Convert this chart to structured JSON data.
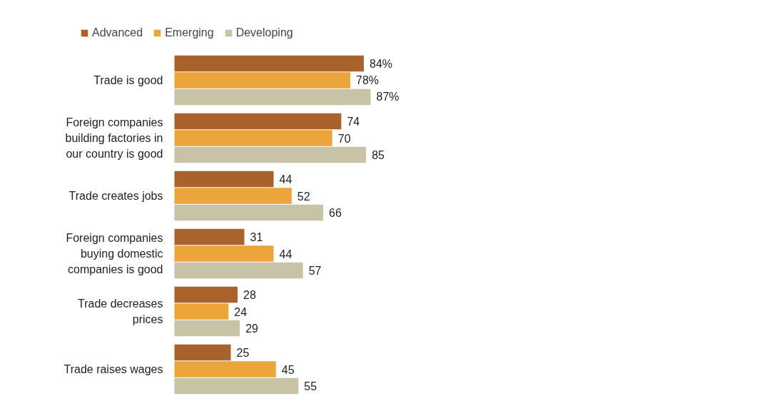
{
  "chart_data": {
    "type": "bar",
    "orientation": "horizontal",
    "categories": [
      "Trade is good",
      "Foreign companies building factories in our country is good",
      "Trade creates jobs",
      "Foreign companies buying domestic companies is good",
      "Trade decreases prices",
      "Trade raises wages"
    ],
    "series": [
      {
        "name": "Advanced",
        "color": "#a9622c",
        "values": [
          84,
          74,
          44,
          31,
          28,
          25
        ],
        "value_labels": [
          "84%",
          "74",
          "44",
          "31",
          "28",
          "25"
        ]
      },
      {
        "name": "Emerging",
        "color": "#eba53a",
        "values": [
          78,
          70,
          52,
          44,
          24,
          45
        ],
        "value_labels": [
          "78%",
          "70",
          "52",
          "44",
          "24",
          "45"
        ]
      },
      {
        "name": "Developing",
        "color": "#c8c2a7",
        "values": [
          87,
          85,
          66,
          57,
          29,
          55
        ],
        "value_labels": [
          "87%",
          "85",
          "66",
          "57",
          "29",
          "55"
        ]
      }
    ],
    "legend": "top left",
    "tick_labels": "y"
  }
}
